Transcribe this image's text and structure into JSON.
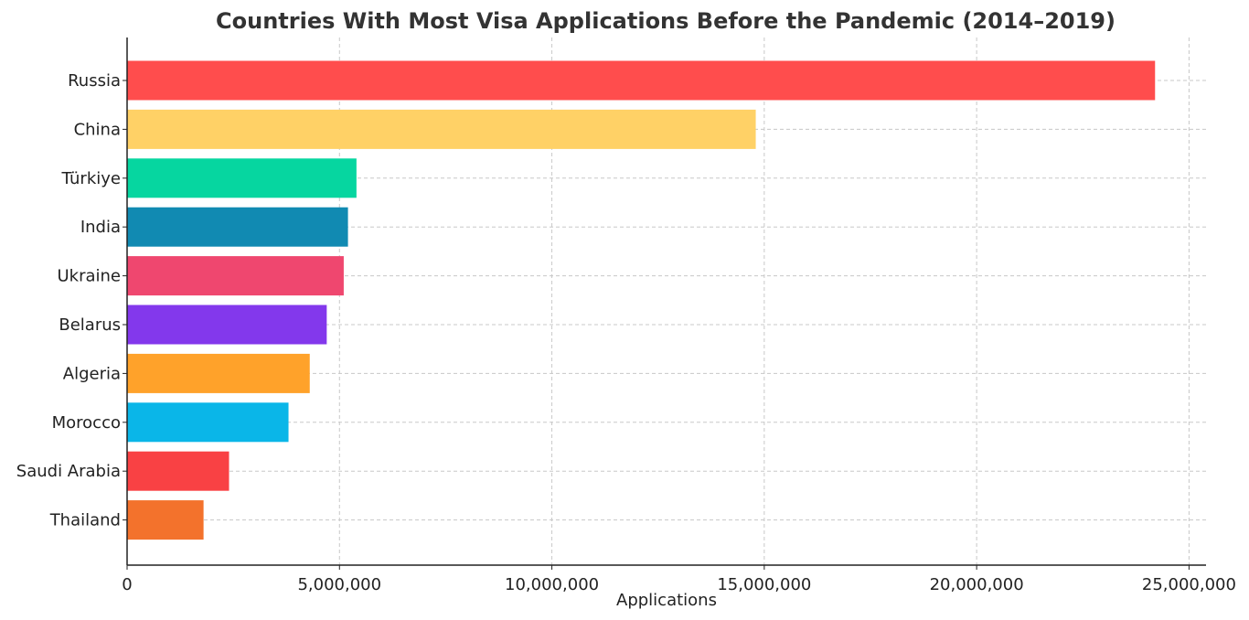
{
  "chart_data": {
    "type": "bar",
    "orientation": "horizontal",
    "title": "Countries With Most Visa Applications Before the Pandemic (2014–2019)",
    "xlabel": "Applications",
    "ylabel": "",
    "xlim": [
      0,
      25400000
    ],
    "xticks": [
      0,
      5000000,
      10000000,
      15000000,
      20000000,
      25000000
    ],
    "xtick_labels": [
      "0",
      "5,000,000",
      "10,000,000",
      "15,000,000",
      "20,000,000",
      "25,000,000"
    ],
    "grid": true,
    "categories": [
      "Russia",
      "China",
      "Türkiye",
      "India",
      "Ukraine",
      "Belarus",
      "Algeria",
      "Morocco",
      "Saudi Arabia",
      "Thailand"
    ],
    "values": [
      24200000,
      14800000,
      5400000,
      5200000,
      5100000,
      4700000,
      4300000,
      3800000,
      2400000,
      1800000
    ],
    "colors": [
      "#ff4d4d",
      "#ffd166",
      "#06d6a0",
      "#118ab2",
      "#ef476f",
      "#8338ec",
      "#ffa22a",
      "#0ab6e8",
      "#f94144",
      "#f3722c"
    ]
  }
}
